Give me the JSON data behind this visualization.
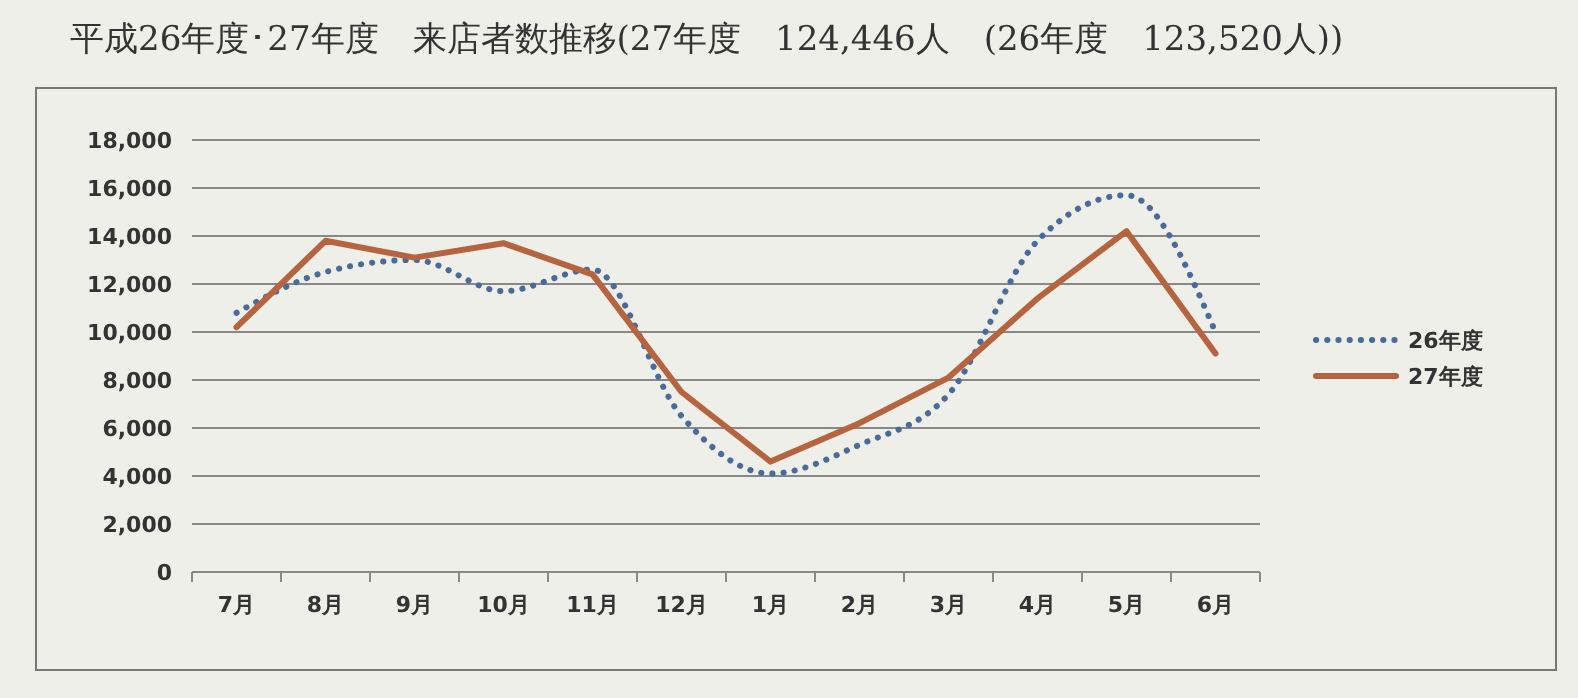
{
  "chart_data": {
    "type": "line",
    "title": "平成26年度･27年度　来店者数推移(27年度　124,446人　(26年度　123,520人))",
    "categories": [
      "7月",
      "8月",
      "9月",
      "10月",
      "11月",
      "12月",
      "1月",
      "2月",
      "3月",
      "4月",
      "5月",
      "6月"
    ],
    "series": [
      {
        "name": "26年度",
        "color": "#4a6a9a",
        "line_style": "dotted",
        "values": [
          10800,
          12500,
          13000,
          11700,
          12600,
          6500,
          4100,
          5300,
          7400,
          13800,
          15700,
          10000
        ]
      },
      {
        "name": "27年度",
        "color": "#b5643f",
        "line_style": "solid",
        "values": [
          10200,
          13800,
          13100,
          13700,
          12400,
          7500,
          4600,
          6200,
          8100,
          11400,
          14200,
          9100
        ]
      }
    ],
    "ylim": [
      0,
      18000
    ],
    "yticks": [
      {
        "value": 0,
        "label": "0"
      },
      {
        "value": 2000,
        "label": "2,000"
      },
      {
        "value": 4000,
        "label": "4,000"
      },
      {
        "value": 6000,
        "label": "6,000"
      },
      {
        "value": 8000,
        "label": "8,000"
      },
      {
        "value": 10000,
        "label": "10,000"
      },
      {
        "value": 12000,
        "label": "12,000"
      },
      {
        "value": 14000,
        "label": "14,000"
      },
      {
        "value": 16000,
        "label": "16,000"
      },
      {
        "value": 18000,
        "label": "18,000"
      }
    ],
    "grid": "y",
    "legend": "right",
    "marker": "none"
  }
}
